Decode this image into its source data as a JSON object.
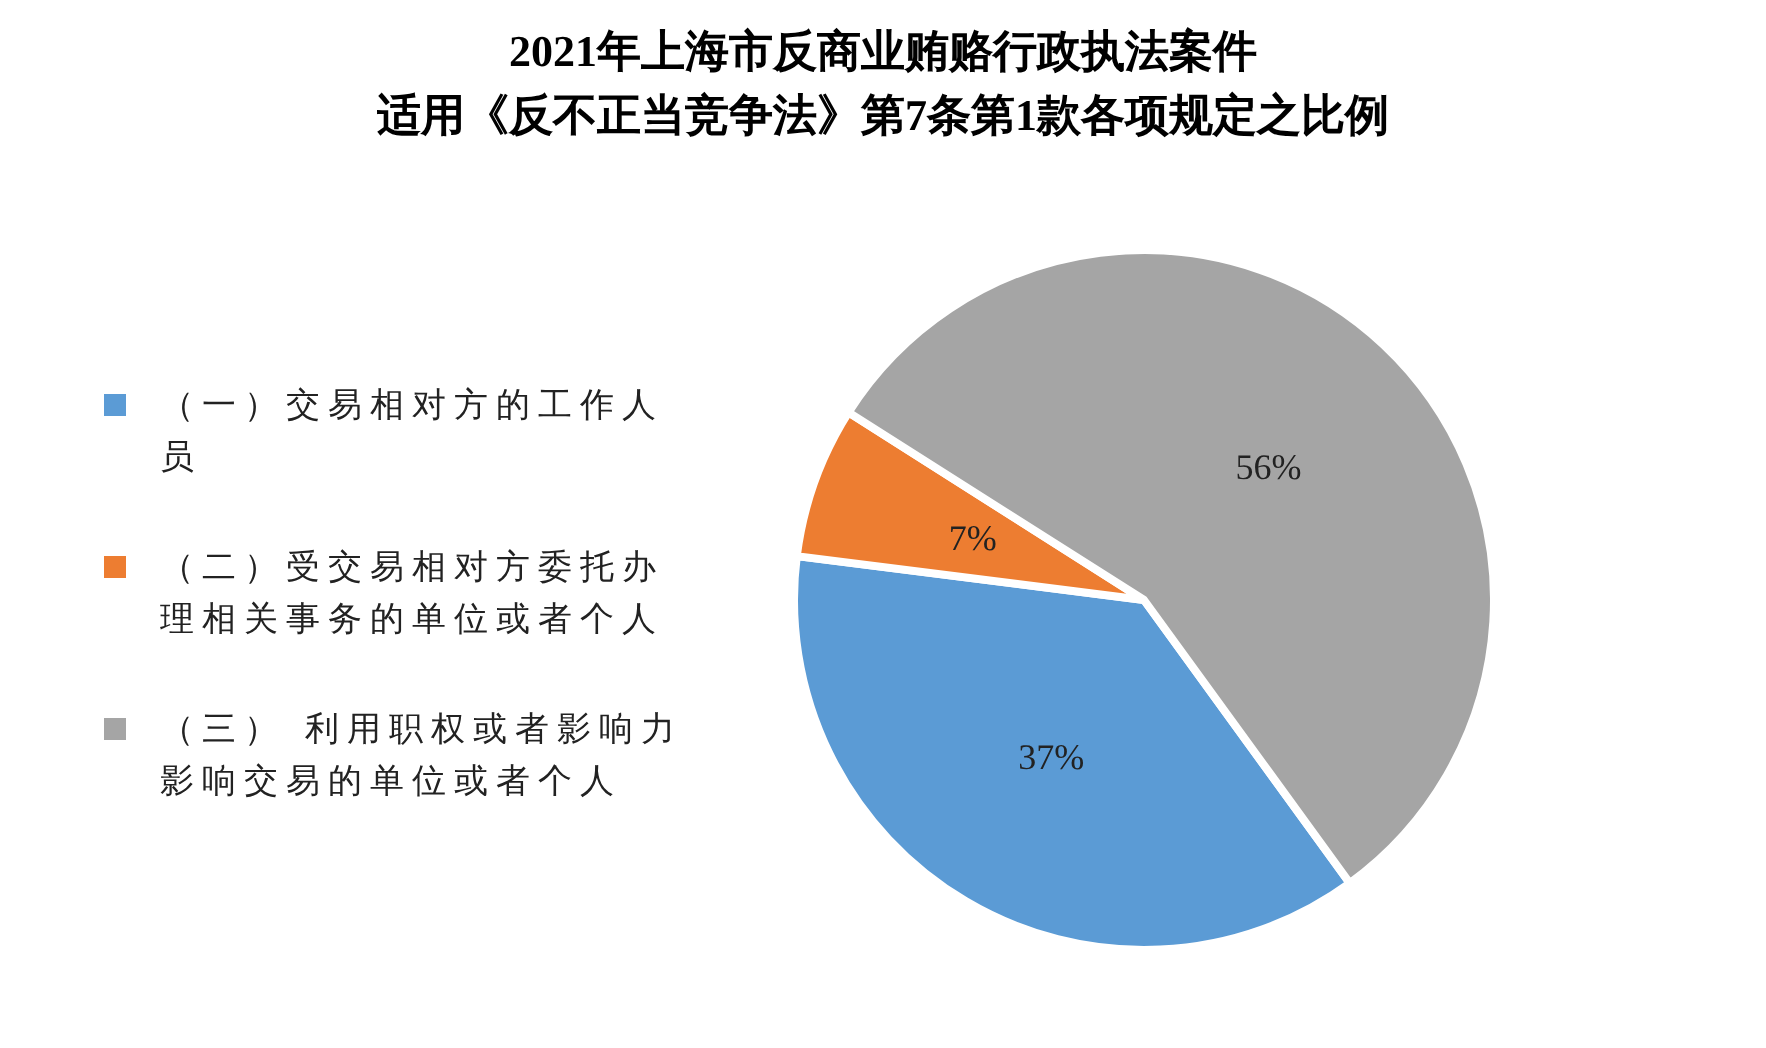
{
  "chart_data": {
    "type": "pie",
    "title": "2021年上海市反商业贿赂行政执法案件",
    "subtitle": "适用《反不正当竞争法》第7条第1款各项规定之比例",
    "categories": [
      "（一）交易相对方的工作人员",
      "（二）受交易相对方委托办理相关事务的单位或者个人",
      "（三） 利用职权或者影响力影响交易的单位或者个人"
    ],
    "values": [
      37,
      7,
      56
    ],
    "colors": [
      "#5b9bd5",
      "#ed7d31",
      "#a5a5a5"
    ],
    "value_labels": [
      "37%",
      "7%",
      "56%"
    ],
    "legend": "left"
  }
}
